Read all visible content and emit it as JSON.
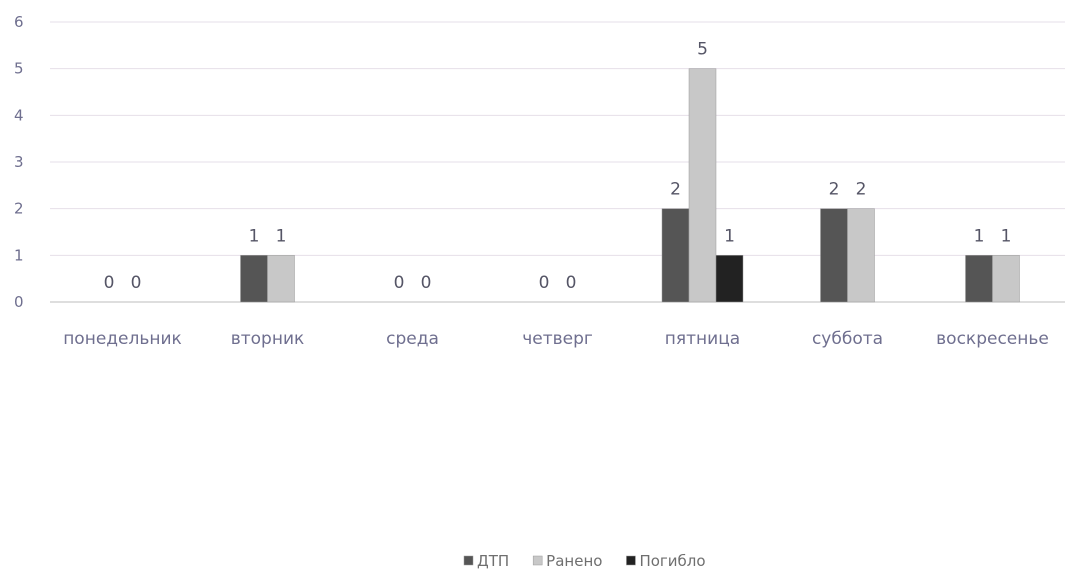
{
  "chart_data": {
    "type": "bar",
    "categories": [
      "понедельник",
      "вторник",
      "среда",
      "четверг",
      "пятница",
      "суббота",
      "воскресенье"
    ],
    "series": [
      {
        "name": "ДТП",
        "color": "#555555",
        "values": [
          0,
          1,
          0,
          0,
          2,
          2,
          1
        ]
      },
      {
        "name": "Ранено",
        "color": "#c8c8c8",
        "values": [
          0,
          1,
          0,
          0,
          5,
          2,
          1
        ]
      },
      {
        "name": "Погибло",
        "color": "#222222",
        "values": [
          null,
          null,
          null,
          null,
          1,
          null,
          null
        ]
      }
    ],
    "y_ticks": [
      "0",
      "1",
      "2",
      "3",
      "4",
      "5",
      "6"
    ],
    "ylim": [
      0,
      6
    ],
    "grid": true,
    "legend_position": "bottom"
  }
}
